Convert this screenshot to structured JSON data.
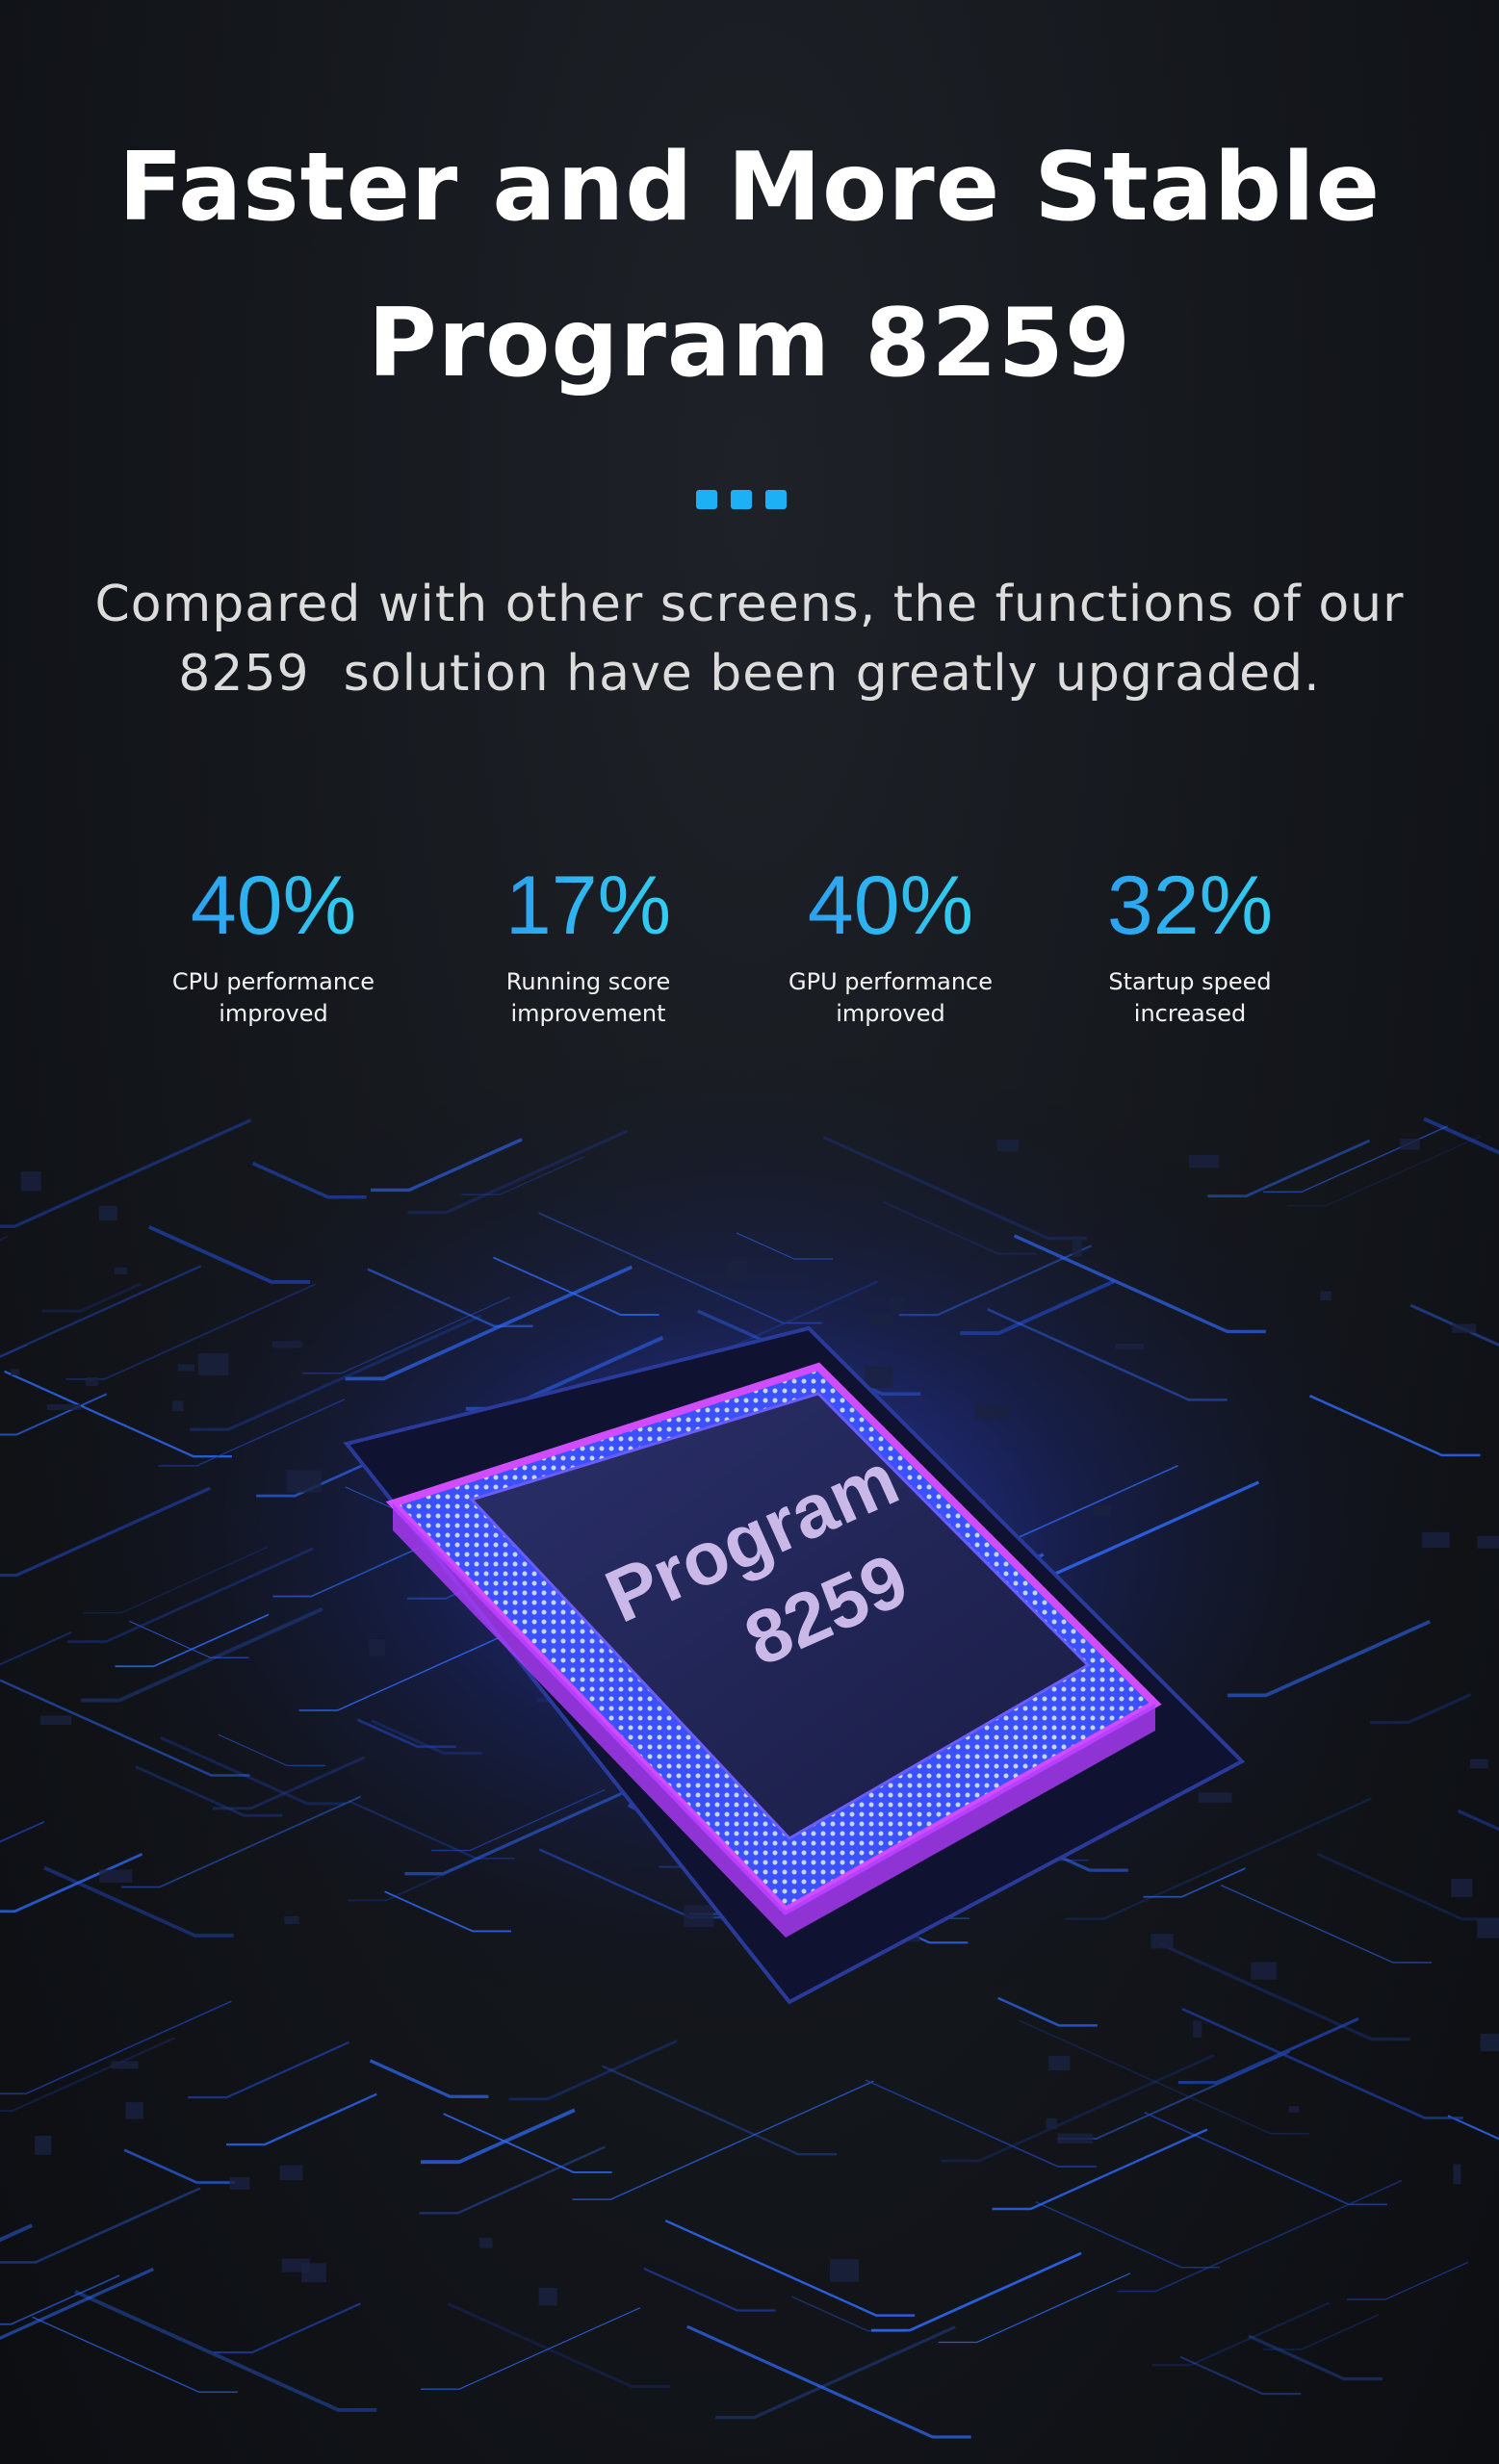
{
  "header": {
    "title_line1": "Faster and More Stable",
    "title_line2": "Program 8259"
  },
  "subtitle": {
    "line1": "Compared with other screens, the functions of our",
    "line2": "8259  solution have been greatly upgraded."
  },
  "stats": [
    {
      "value": "40%",
      "label_line1": "CPU performance",
      "label_line2": "improved"
    },
    {
      "value": "17%",
      "label_line1": "Running score",
      "label_line2": "improvement"
    },
    {
      "value": "40%",
      "label_line1": "GPU performance",
      "label_line2": "improved"
    },
    {
      "value": "32%",
      "label_line1": "Startup speed",
      "label_line2": "increased"
    }
  ],
  "chip": {
    "label_line1": "Program",
    "label_line2": "8259"
  },
  "colors": {
    "accent": "#1db0f5",
    "chip_glow": "#3a4cff",
    "chip_edge": "#d14bff"
  }
}
